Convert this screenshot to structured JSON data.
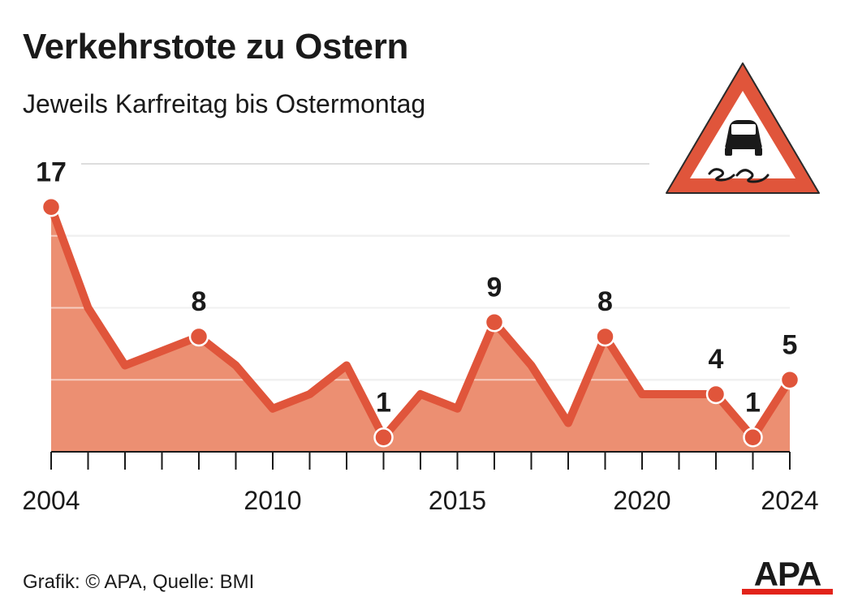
{
  "title": "Verkehrstote zu Ostern",
  "subtitle": "Jeweils Karfreitag bis Ostermontag",
  "source": "Grafik: © APA, Quelle: BMI",
  "logo_text": "APA",
  "sign_icon": "slippery-road-warning-sign",
  "colors": {
    "line": "#e0553b",
    "area": "#ec8f72",
    "grid": "#dddddd",
    "axis": "#1a1a1a",
    "text": "#1a1a1a",
    "logo_bar": "#e2231a"
  },
  "chart_data": {
    "type": "area",
    "title": "Verkehrstote zu Ostern",
    "subtitle": "Jeweils Karfreitag bis Ostermontag",
    "x": [
      2004,
      2005,
      2006,
      2007,
      2008,
      2009,
      2010,
      2011,
      2012,
      2013,
      2014,
      2015,
      2016,
      2017,
      2018,
      2019,
      2020,
      2021,
      2022,
      2023,
      2024
    ],
    "values": [
      17,
      10,
      6,
      7,
      8,
      6,
      3,
      4,
      6,
      1,
      4,
      3,
      9,
      6,
      2,
      8,
      4,
      4,
      4,
      1,
      5
    ],
    "xticks": [
      2004,
      2010,
      2015,
      2020,
      2024
    ],
    "labeled_points": [
      {
        "x": 2004,
        "label": "17"
      },
      {
        "x": 2008,
        "label": "8"
      },
      {
        "x": 2013,
        "label": "1"
      },
      {
        "x": 2016,
        "label": "9"
      },
      {
        "x": 2019,
        "label": "8"
      },
      {
        "x": 2022,
        "label": "4"
      },
      {
        "x": 2023,
        "label": "1"
      },
      {
        "x": 2024,
        "label": "5"
      }
    ],
    "ylim": [
      0,
      20
    ],
    "gridlines": [
      5,
      10,
      15,
      20
    ],
    "grid": true,
    "legend": "none"
  }
}
